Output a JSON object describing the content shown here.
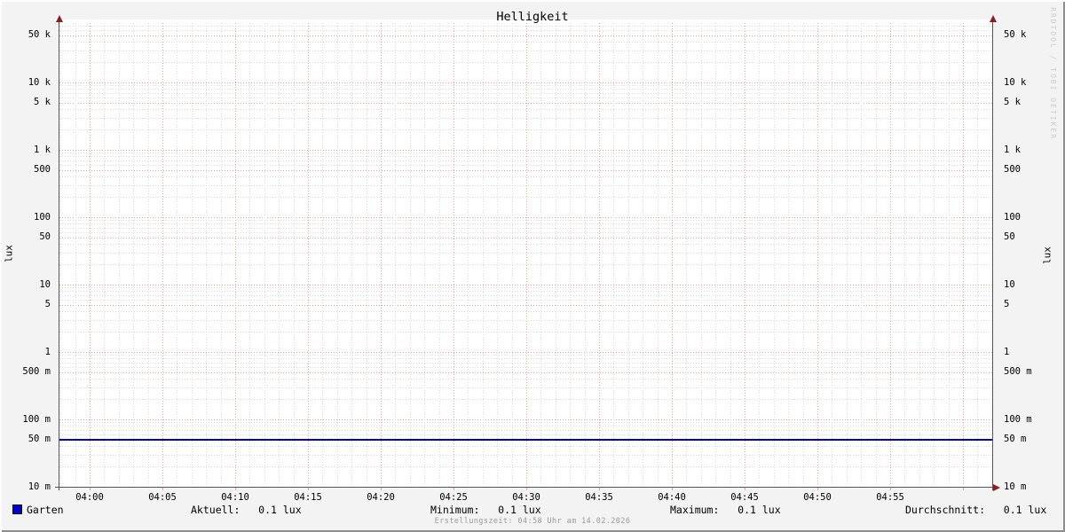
{
  "title": "Helligkeit",
  "watermark": "RRDTOOL / TOBI OETIKER",
  "footer": "Erstellungszeit: 04:58 Uhr am 14.02.2026",
  "colors": {
    "background": "#f3f3f3",
    "canvas": "#ffffff",
    "major_grid": "#ee9c9c",
    "minor_grid": "#d8d8d8",
    "axis": "#555555",
    "arrow": "#8b1f1f",
    "series": "#0202cc",
    "text": "#000000",
    "watermark_text": "#cbcbcb",
    "footer_text": "#9a9a9a"
  },
  "legend": {
    "series_name": "Garten",
    "stats": [
      {
        "label": "Aktuell:",
        "value": "0.1 lux"
      },
      {
        "label": "Minimum:",
        "value": "0.1 lux"
      },
      {
        "label": "Maximum:",
        "value": "0.1 lux"
      },
      {
        "label": "Durchschnitt:",
        "value": "0.1 lux"
      }
    ]
  },
  "chart_data": {
    "type": "line",
    "title": "Helligkeit",
    "ylabel": "lux",
    "ylabel_right": "lux",
    "y_scale": "logarithmic",
    "ylim": [
      0.01,
      78000
    ],
    "grid": "red dotted major (1x and 5x per decade, 5-min verticals), gray dotted minor (2,3,4,6,7,8,9 per decade, 1-min verticals)",
    "legend_position": "bottom",
    "x_ticks": [
      "04:00",
      "04:05",
      "04:10",
      "04:15",
      "04:20",
      "04:25",
      "04:30",
      "04:35",
      "04:40",
      "04:45",
      "04:50",
      "04:55"
    ],
    "x_minor_step_minutes": 1,
    "x_major_step_minutes": 5,
    "y_ticks": [
      {
        "label": "50 k",
        "value": 50000
      },
      {
        "label": "10 k",
        "value": 10000
      },
      {
        "label": "5 k",
        "value": 5000
      },
      {
        "label": "1 k",
        "value": 1000
      },
      {
        "label": "500",
        "value": 500
      },
      {
        "label": "100",
        "value": 100
      },
      {
        "label": "50",
        "value": 50
      },
      {
        "label": "10",
        "value": 10
      },
      {
        "label": "5",
        "value": 5
      },
      {
        "label": "1",
        "value": 1
      },
      {
        "label": "500 m",
        "value": 0.5
      },
      {
        "label": "100 m",
        "value": 0.1
      },
      {
        "label": "50 m",
        "value": 0.05
      },
      {
        "label": "10 m",
        "value": 0.01
      }
    ],
    "series": [
      {
        "name": "Garten",
        "color": "#0202cc",
        "shape": "constant-horizontal-line",
        "value_lux": 0.05
      }
    ]
  }
}
